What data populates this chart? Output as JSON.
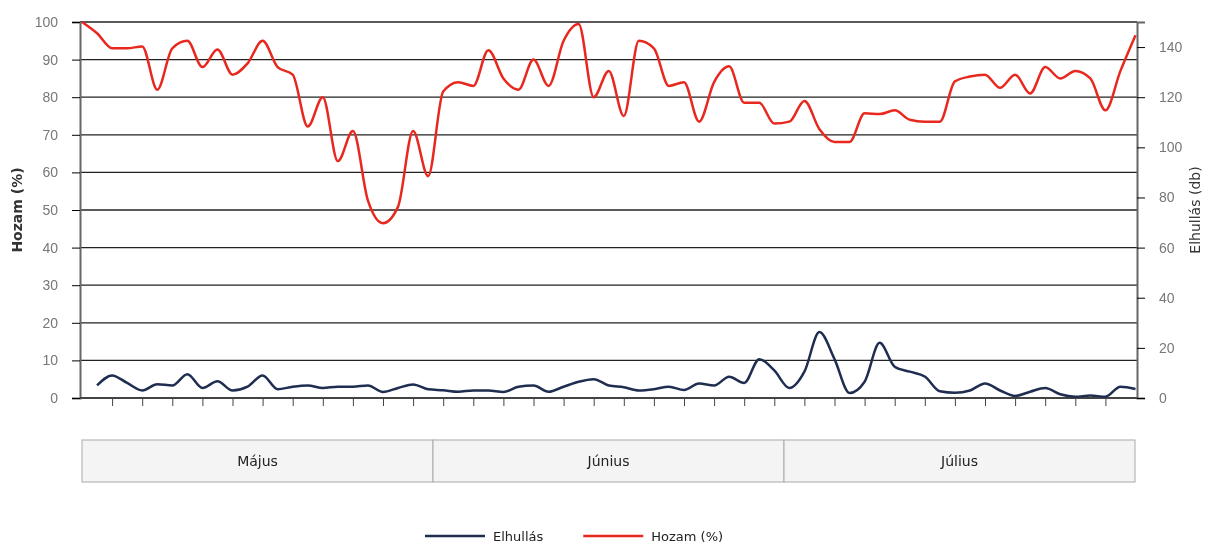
{
  "chart_data": {
    "type": "line",
    "ylabel": "Hozam (%)",
    "y2label": "Elhullás (db)",
    "categories": [
      null,
      null,
      null,
      null,
      null,
      null,
      null,
      null,
      null,
      null,
      null,
      null,
      null,
      null,
      null,
      null,
      null,
      null,
      null,
      null,
      null,
      null,
      null,
      null,
      null,
      null,
      null,
      null,
      null,
      null,
      null,
      null,
      null,
      null,
      null,
      null,
      null,
      null,
      null,
      null,
      null,
      null,
      null,
      null,
      null,
      null,
      null,
      null,
      null,
      null,
      null,
      null,
      null,
      null,
      null,
      null,
      null,
      null,
      null,
      null,
      null,
      null,
      null,
      null,
      null,
      null,
      null,
      null,
      null,
      null,
      null
    ],
    "series": [
      {
        "name": "Elhullás",
        "color": "#1f2d50",
        "axis": "y2",
        "values": [
          null,
          5,
          9,
          6,
          3,
          5.5,
          5,
          9.5,
          4,
          6.7,
          3,
          4.5,
          9,
          3.5,
          4.5,
          5,
          4,
          4.5,
          4.5,
          5,
          2.4,
          4,
          5.4,
          3.5,
          3.1,
          2.5,
          3,
          3,
          2.4,
          4.5,
          5,
          2.5,
          4.5,
          6.5,
          7.5,
          5,
          4.3,
          3,
          3.5,
          4.5,
          3.2,
          5.8,
          5,
          8.5,
          6,
          15.5,
          11,
          4,
          10.5,
          26.3,
          15.5,
          2,
          6.5,
          22,
          12.5,
          10.5,
          8.6,
          2.7,
          2.1,
          3,
          5.8,
          3,
          0.8,
          2.5,
          4,
          1.5,
          0.5,
          1,
          0.5,
          4.5,
          3.6
        ]
      },
      {
        "name": "Hozam (%)",
        "color": "#e8281e",
        "values": [
          100,
          97,
          93,
          93,
          93.5,
          82,
          93,
          95,
          88,
          92.7,
          86,
          89,
          95,
          88,
          86,
          72.2,
          80,
          63,
          71,
          52.5,
          46.5,
          50.9,
          71,
          59,
          81.5,
          84,
          83,
          92.5,
          85,
          82,
          90,
          83,
          95,
          99.5,
          80,
          87,
          75,
          95,
          93,
          83,
          84,
          73.5,
          84,
          88.2,
          78.5,
          78.5,
          73,
          73.5,
          79,
          71.5,
          68.1,
          68.1,
          75.7,
          75.5,
          76.5,
          74,
          73.5,
          73.5,
          84.2,
          85.5,
          86,
          82.5,
          86,
          81,
          88,
          85,
          87,
          85,
          76.5,
          87,
          96.5
        ]
      }
    ],
    "ylim": [
      0,
      100
    ],
    "yticks": [
      0,
      10,
      20,
      30,
      40,
      50,
      60,
      70,
      80,
      90,
      100
    ],
    "y2lim": [
      0,
      150
    ],
    "y2ticks": [
      0,
      20,
      40,
      60,
      80,
      100,
      120,
      140
    ],
    "grid": "y",
    "legend": "bottom",
    "line_style": "solid",
    "marker": "none",
    "annotations": [
      "Május",
      "Június",
      "Július"
    ]
  }
}
